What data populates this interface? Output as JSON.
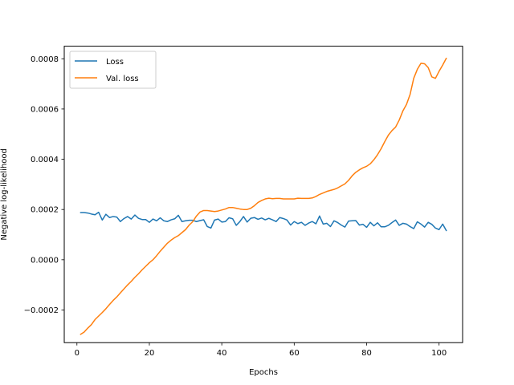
{
  "chart_data": {
    "type": "line",
    "xlabel": "Epochs",
    "ylabel": "Negative log-likelihood",
    "xlim": [
      -3.5,
      106.5
    ],
    "ylim": [
      -0.00033,
      0.00085
    ],
    "xticks": [
      0,
      20,
      40,
      60,
      80,
      100
    ],
    "xtick_labels": [
      "0",
      "20",
      "40",
      "60",
      "80",
      "100"
    ],
    "yticks": [
      -0.0002,
      0.0,
      0.0002,
      0.0004,
      0.0006,
      0.0008
    ],
    "ytick_labels": [
      "−0.0002",
      "0.0000",
      "0.0002",
      "0.0004",
      "0.0006",
      "0.0008"
    ],
    "grid": false,
    "legend_position": "top-left",
    "x": [
      1,
      2,
      3,
      4,
      5,
      6,
      7,
      8,
      9,
      10,
      11,
      12,
      13,
      14,
      15,
      16,
      17,
      18,
      19,
      20,
      21,
      22,
      23,
      24,
      25,
      26,
      27,
      28,
      29,
      30,
      31,
      32,
      33,
      34,
      35,
      36,
      37,
      38,
      39,
      40,
      41,
      42,
      43,
      44,
      45,
      46,
      47,
      48,
      49,
      50,
      51,
      52,
      53,
      54,
      55,
      56,
      57,
      58,
      59,
      60,
      61,
      62,
      63,
      64,
      65,
      66,
      67,
      68,
      69,
      70,
      71,
      72,
      73,
      74,
      75,
      76,
      77,
      78,
      79,
      80,
      81,
      82,
      83,
      84,
      85,
      86,
      87,
      88,
      89,
      90,
      91,
      92,
      93,
      94,
      95,
      96,
      97,
      98,
      99,
      100,
      101,
      102
    ],
    "series": [
      {
        "name": "Loss",
        "color": "#1f77b4",
        "values": [
          0.000188,
          0.000188,
          0.000186,
          0.000182,
          0.000179,
          0.000189,
          0.000158,
          0.000181,
          0.000168,
          0.000172,
          0.00017,
          0.000152,
          0.000164,
          0.000172,
          0.000162,
          0.000178,
          0.000165,
          0.00016,
          0.00016,
          0.000149,
          0.000162,
          0.000155,
          0.000167,
          0.000155,
          0.000152,
          0.000159,
          0.000163,
          0.000177,
          0.000152,
          0.000155,
          0.000157,
          0.000157,
          0.000152,
          0.000156,
          0.000159,
          0.000132,
          0.000126,
          0.000158,
          0.000162,
          0.00015,
          0.000152,
          0.000167,
          0.000163,
          0.000137,
          0.000152,
          0.000172,
          0.00015,
          0.000165,
          0.000168,
          0.000161,
          0.000166,
          0.000159,
          0.000165,
          0.000159,
          0.000152,
          0.000168,
          0.000164,
          0.000158,
          0.000138,
          0.000152,
          0.000144,
          0.000149,
          0.000137,
          0.000146,
          0.000152,
          0.000143,
          0.000174,
          0.000142,
          0.000145,
          0.000132,
          0.000155,
          0.000148,
          0.000138,
          0.00013,
          0.000154,
          0.000155,
          0.000156,
          0.000138,
          0.000141,
          0.000129,
          0.000149,
          0.000135,
          0.000147,
          0.000131,
          0.000131,
          0.000137,
          0.000148,
          0.000158,
          0.000137,
          0.000145,
          0.000142,
          0.000132,
          0.000124,
          0.000151,
          0.000142,
          0.00013,
          0.000149,
          0.000141,
          0.000126,
          0.00012,
          0.000142,
          0.000116
        ]
      },
      {
        "name": "Val. loss",
        "color": "#ff7f0e",
        "values": [
          -0.000297,
          -0.000288,
          -0.000272,
          -0.000258,
          -0.000238,
          -0.000224,
          -0.00021,
          -0.000195,
          -0.000178,
          -0.000162,
          -0.000148,
          -0.000132,
          -0.000116,
          -0.0001,
          -8.6e-05,
          -7e-05,
          -5.6e-05,
          -4e-05,
          -2.6e-05,
          -1.2e-05,
          0.0,
          1.6e-05,
          3.4e-05,
          5e-05,
          6.6e-05,
          7.8e-05,
          8.8e-05,
          9.6e-05,
          0.000108,
          0.00012,
          0.000138,
          0.000152,
          0.000174,
          0.00019,
          0.000196,
          0.000196,
          0.000194,
          0.000192,
          0.000194,
          0.000198,
          0.000202,
          0.000208,
          0.000208,
          0.000205,
          0.000202,
          0.0002,
          0.0002,
          0.000205,
          0.000215,
          0.000228,
          0.000236,
          0.000242,
          0.000245,
          0.000243,
          0.000244,
          0.000244,
          0.000242,
          0.000242,
          0.000242,
          0.000242,
          0.000245,
          0.000244,
          0.000244,
          0.000244,
          0.000246,
          0.000252,
          0.00026,
          0.000266,
          0.000272,
          0.000276,
          0.00028,
          0.000286,
          0.000294,
          0.000302,
          0.000316,
          0.000334,
          0.000348,
          0.000358,
          0.000366,
          0.000372,
          0.000382,
          0.000398,
          0.000418,
          0.000442,
          0.00047,
          0.000496,
          0.000514,
          0.000528,
          0.000556,
          0.000592,
          0.000618,
          0.000658,
          0.000722,
          0.000758,
          0.000782,
          0.00078,
          0.000765,
          0.000728,
          0.000722,
          0.00075,
          0.000775,
          0.000802
        ]
      }
    ]
  }
}
